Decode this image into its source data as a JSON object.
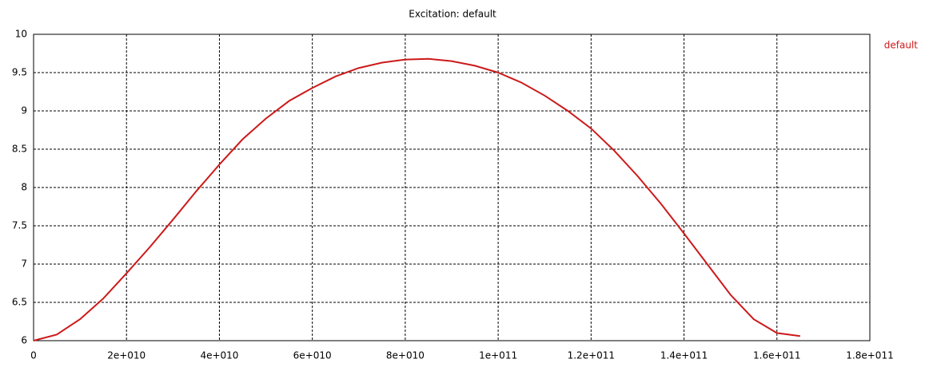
{
  "chart_data": {
    "type": "line",
    "title": "Excitation: default",
    "x": [
      0,
      5000000000,
      10000000000,
      15000000000,
      20000000000,
      25000000000,
      30000000000,
      35000000000,
      40000000000,
      45000000000,
      50000000000,
      55000000000,
      60000000000,
      65000000000,
      70000000000,
      75000000000,
      80000000000,
      85000000000,
      90000000000,
      95000000000,
      100000000000,
      105000000000,
      110000000000,
      115000000000,
      120000000000,
      125000000000,
      130000000000,
      135000000000,
      140000000000,
      145000000000,
      150000000000,
      155000000000,
      160000000000,
      165000000000
    ],
    "series": [
      {
        "name": "default",
        "color": "#cc1a1a",
        "values": [
          6.0,
          6.08,
          6.28,
          6.55,
          6.88,
          7.22,
          7.58,
          7.95,
          8.3,
          8.63,
          8.9,
          9.13,
          9.3,
          9.45,
          9.56,
          9.63,
          9.67,
          9.68,
          9.65,
          9.59,
          9.5,
          9.37,
          9.2,
          9.0,
          8.77,
          8.48,
          8.15,
          7.79,
          7.4,
          7.0,
          6.6,
          6.28,
          6.1,
          6.06
        ]
      }
    ],
    "xlim": [
      0,
      180000000000
    ],
    "xticks": [
      0,
      {
        "value": 20000000000,
        "label": "2e+010"
      },
      {
        "value": 40000000000,
        "label": "4e+010"
      },
      {
        "value": 60000000000,
        "label": "6e+010"
      },
      {
        "value": 80000000000,
        "label": "8e+010"
      },
      {
        "value": 100000000000,
        "label": "1e+011"
      },
      {
        "value": 120000000000,
        "label": "1.2e+011"
      },
      {
        "value": 140000000000,
        "label": "1.4e+011"
      },
      {
        "value": 160000000000,
        "label": "1.6e+011"
      },
      {
        "value": 180000000000,
        "label": "1.8e+011"
      }
    ],
    "ylim": [
      6,
      10
    ],
    "yticks": [
      6,
      6.5,
      7,
      7.5,
      8,
      8.5,
      9,
      9.5,
      10
    ],
    "grid": true,
    "legend": "right"
  }
}
